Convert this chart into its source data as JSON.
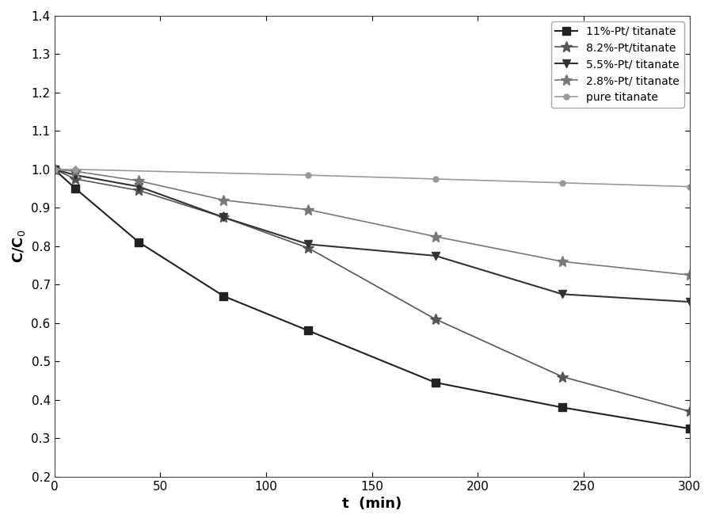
{
  "title": "",
  "xlabel": "t  (min)",
  "ylabel": "C/C$_0$",
  "xlim": [
    0,
    300
  ],
  "ylim": [
    0.2,
    1.4
  ],
  "yticks": [
    0.2,
    0.3,
    0.4,
    0.5,
    0.6,
    0.7,
    0.8,
    0.9,
    1.0,
    1.1,
    1.2,
    1.3,
    1.4
  ],
  "xticks": [
    0,
    50,
    100,
    150,
    200,
    250,
    300
  ],
  "series": [
    {
      "label": "11%-Pt/ titanate",
      "color": "#222222",
      "marker": "s",
      "markersize": 7,
      "linewidth": 1.5,
      "linestyle": "-",
      "x": [
        0,
        10,
        40,
        80,
        120,
        180,
        240,
        300
      ],
      "y": [
        1.0,
        0.95,
        0.81,
        0.67,
        0.58,
        0.445,
        0.38,
        0.325
      ]
    },
    {
      "label": "8.2%-Pt/titanate",
      "color": "#555555",
      "marker": "*",
      "markersize": 10,
      "linewidth": 1.2,
      "linestyle": "-",
      "x": [
        0,
        10,
        40,
        80,
        120,
        180,
        240,
        300
      ],
      "y": [
        1.0,
        0.975,
        0.945,
        0.875,
        0.795,
        0.61,
        0.46,
        0.37
      ]
    },
    {
      "label": "5.5%-Pt/ titanate",
      "color": "#333333",
      "marker": "v",
      "markersize": 7,
      "linewidth": 1.5,
      "linestyle": "-",
      "x": [
        0,
        10,
        40,
        80,
        120,
        180,
        240,
        300
      ],
      "y": [
        1.0,
        0.985,
        0.955,
        0.875,
        0.805,
        0.775,
        0.675,
        0.655
      ]
    },
    {
      "label": "2.8%-Pt/ titanate",
      "color": "#777777",
      "marker": "*",
      "markersize": 10,
      "linewidth": 1.2,
      "linestyle": "-",
      "x": [
        0,
        10,
        40,
        80,
        120,
        180,
        240,
        300
      ],
      "y": [
        1.0,
        0.995,
        0.97,
        0.92,
        0.895,
        0.825,
        0.76,
        0.725
      ]
    },
    {
      "label": "pure titanate",
      "color": "#999999",
      "marker": "o",
      "markersize": 5,
      "linewidth": 1.2,
      "linestyle": "-",
      "x": [
        0,
        10,
        120,
        180,
        240,
        300
      ],
      "y": [
        1.0,
        1.0,
        0.985,
        0.975,
        0.965,
        0.955
      ]
    }
  ],
  "legend_loc": "upper right",
  "legend_fontsize": 10,
  "axis_fontsize": 13,
  "tick_fontsize": 11,
  "figure_facecolor": "#ffffff",
  "axes_facecolor": "#ffffff"
}
